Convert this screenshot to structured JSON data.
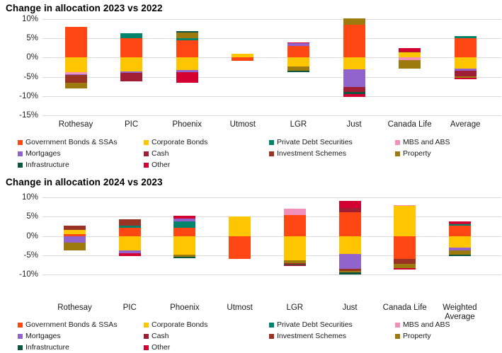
{
  "series_colors": {
    "Government Bonds & SSAs": "#FF4713",
    "Corporate Bonds": "#FFC600",
    "Private Debt Securities": "#00846B",
    "MBS and ABS": "#F191BB",
    "Mortgages": "#9063CD",
    "Cash": "#A11D33",
    "Investment Schemes": "#9A3324",
    "Property": "#9D7A0D",
    "Infrastructure": "#0A5640",
    "Other": "#D50032"
  },
  "legend_items": [
    "Government Bonds & SSAs",
    "Corporate Bonds",
    "Private Debt Securities",
    "MBS and ABS",
    "Mortgages",
    "Cash",
    "Investment Schemes",
    "Property",
    "Infrastructure",
    "Other"
  ],
  "chart_data": [
    {
      "type": "bar",
      "stacked": true,
      "title": "Change in allocation 2023 vs 2022",
      "ylabel": "",
      "xlabel": "",
      "ylim": [
        -15,
        10
      ],
      "y_ticks": [
        "10%",
        "5%",
        "0%",
        "-5%",
        "-10%",
        "-15%"
      ],
      "grid": true,
      "legend_position": "bottom",
      "bars": [
        {
          "label": "Rothesay",
          "segments": [
            [
              "Government Bonds & SSAs",
              7.9
            ],
            [
              "Corporate Bonds",
              -3.7
            ],
            [
              "MBS and ABS",
              -0.7
            ],
            [
              "Mortgages",
              -0.2
            ],
            [
              "Investment Schemes",
              -1.9
            ],
            [
              "Property",
              -1.6
            ]
          ]
        },
        {
          "label": "PIC",
          "segments": [
            [
              "Private Debt Securities",
              1.4
            ],
            [
              "Government Bonds & SSAs",
              5.0
            ],
            [
              "Corporate Bonds",
              -3.6
            ],
            [
              "Mortgages",
              -0.4
            ],
            [
              "Cash",
              -2.1
            ]
          ]
        },
        {
          "label": "Phoenix",
          "segments": [
            [
              "Infrastructure",
              0.3
            ],
            [
              "Property",
              1.4
            ],
            [
              "Private Debt Securities",
              0.6
            ],
            [
              "Government Bonds & SSAs",
              4.5
            ],
            [
              "Corporate Bonds",
              -3.2
            ],
            [
              "Mortgages",
              -0.6
            ],
            [
              "Other",
              -2.8
            ]
          ]
        },
        {
          "label": "Utmost",
          "segments": [
            [
              "Corporate Bonds",
              1.0
            ],
            [
              "Government Bonds & SSAs",
              -0.9
            ]
          ]
        },
        {
          "label": "LGR",
          "segments": [
            [
              "Other",
              0.2
            ],
            [
              "Mortgages",
              0.6
            ],
            [
              "Government Bonds & SSAs",
              3.1
            ],
            [
              "Corporate Bonds",
              -2.3
            ],
            [
              "Property",
              -1.1
            ],
            [
              "Infrastructure",
              -0.4
            ]
          ]
        },
        {
          "label": "Just",
          "segments": [
            [
              "Property",
              1.5
            ],
            [
              "Government Bonds & SSAs",
              8.6
            ],
            [
              "Corporate Bonds",
              -3.1
            ],
            [
              "Mortgages",
              -4.6
            ],
            [
              "Cash",
              -1.3
            ],
            [
              "Infrastructure",
              -0.4
            ],
            [
              "Other",
              -0.8
            ]
          ]
        },
        {
          "label": "Canada Life",
          "segments": [
            [
              "Other",
              0.8
            ],
            [
              "Investment Schemes",
              0.3
            ],
            [
              "Corporate Bonds",
              1.3
            ],
            [
              "MBS and ABS",
              -0.6
            ],
            [
              "Property",
              -2.3
            ]
          ]
        },
        {
          "label": "Average",
          "segments": [
            [
              "Private Debt Securities",
              0.5
            ],
            [
              "Government Bonds & SSAs",
              5.0
            ],
            [
              "Corporate Bonds",
              -2.8
            ],
            [
              "Mortgages",
              -0.6
            ],
            [
              "Cash",
              -1.4
            ],
            [
              "Property",
              -0.5
            ],
            [
              "Other",
              -0.3
            ]
          ]
        }
      ]
    },
    {
      "type": "bar",
      "stacked": true,
      "title": "Change in allocation 2024 vs 2023",
      "ylabel": "",
      "xlabel": "",
      "ylim": [
        -10,
        10
      ],
      "y_ticks": [
        "10%",
        "5%",
        "0%",
        "-5%",
        "-10%"
      ],
      "grid": true,
      "legend_position": "bottom",
      "bars": [
        {
          "label": "Rothesay",
          "segments": [
            [
              "Investment Schemes",
              1.1
            ],
            [
              "Corporate Bonds",
              1.1
            ],
            [
              "Government Bonds & SSAs",
              0.4
            ],
            [
              "Mortgages",
              -1.8
            ],
            [
              "Property",
              -1.9
            ]
          ]
        },
        {
          "label": "PIC",
          "segments": [
            [
              "Investment Schemes",
              1.7
            ],
            [
              "Private Debt Securities",
              0.6
            ],
            [
              "Government Bonds & SSAs",
              2.1
            ],
            [
              "Corporate Bonds",
              -3.8
            ],
            [
              "Mortgages",
              -0.6
            ],
            [
              "Other",
              -0.8
            ]
          ]
        },
        {
          "label": "Phoenix",
          "segments": [
            [
              "Other",
              0.7
            ],
            [
              "Mortgages",
              0.7
            ],
            [
              "Private Debt Securities",
              1.6
            ],
            [
              "Government Bonds & SSAs",
              2.2
            ],
            [
              "Corporate Bonds",
              -4.9
            ],
            [
              "Property",
              -0.5
            ],
            [
              "Infrastructure",
              -0.4
            ]
          ]
        },
        {
          "label": "Utmost",
          "segments": [
            [
              "Corporate Bonds",
              5.0
            ],
            [
              "Government Bonds & SSAs",
              -5.9
            ]
          ]
        },
        {
          "label": "LGR",
          "segments": [
            [
              "MBS and ABS",
              1.7
            ],
            [
              "Government Bonds & SSAs",
              5.4
            ],
            [
              "Corporate Bonds",
              -6.3
            ],
            [
              "Property",
              -0.8
            ],
            [
              "Investment Schemes",
              -0.3
            ],
            [
              "Infrastructure",
              -0.2
            ],
            [
              "Other",
              -0.2
            ]
          ]
        },
        {
          "label": "Just",
          "segments": [
            [
              "Other",
              1.9
            ],
            [
              "Cash",
              1.1
            ],
            [
              "Government Bonds & SSAs",
              6.1
            ],
            [
              "Corporate Bonds",
              -4.7
            ],
            [
              "Mortgages",
              -3.8
            ],
            [
              "Investment Schemes",
              -0.6
            ],
            [
              "Property",
              -0.4
            ],
            [
              "Infrastructure",
              -0.4
            ]
          ]
        },
        {
          "label": "Canada Life",
          "segments": [
            [
              "MBS and ABS",
              0.2
            ],
            [
              "Corporate Bonds",
              7.8
            ],
            [
              "Government Bonds & SSAs",
              -5.9
            ],
            [
              "Investment Schemes",
              -1.4
            ],
            [
              "Property",
              -1.1
            ],
            [
              "Other",
              -0.3
            ]
          ]
        },
        {
          "label": "Weighted Average",
          "segments": [
            [
              "Other",
              0.5
            ],
            [
              "Cash",
              0.3
            ],
            [
              "Private Debt Securities",
              0.4
            ],
            [
              "Government Bonds & SSAs",
              2.6
            ],
            [
              "Corporate Bonds",
              -3.0
            ],
            [
              "Mortgages",
              -0.8
            ],
            [
              "Property",
              -1.1
            ],
            [
              "Infrastructure",
              -0.3
            ]
          ]
        }
      ]
    }
  ]
}
